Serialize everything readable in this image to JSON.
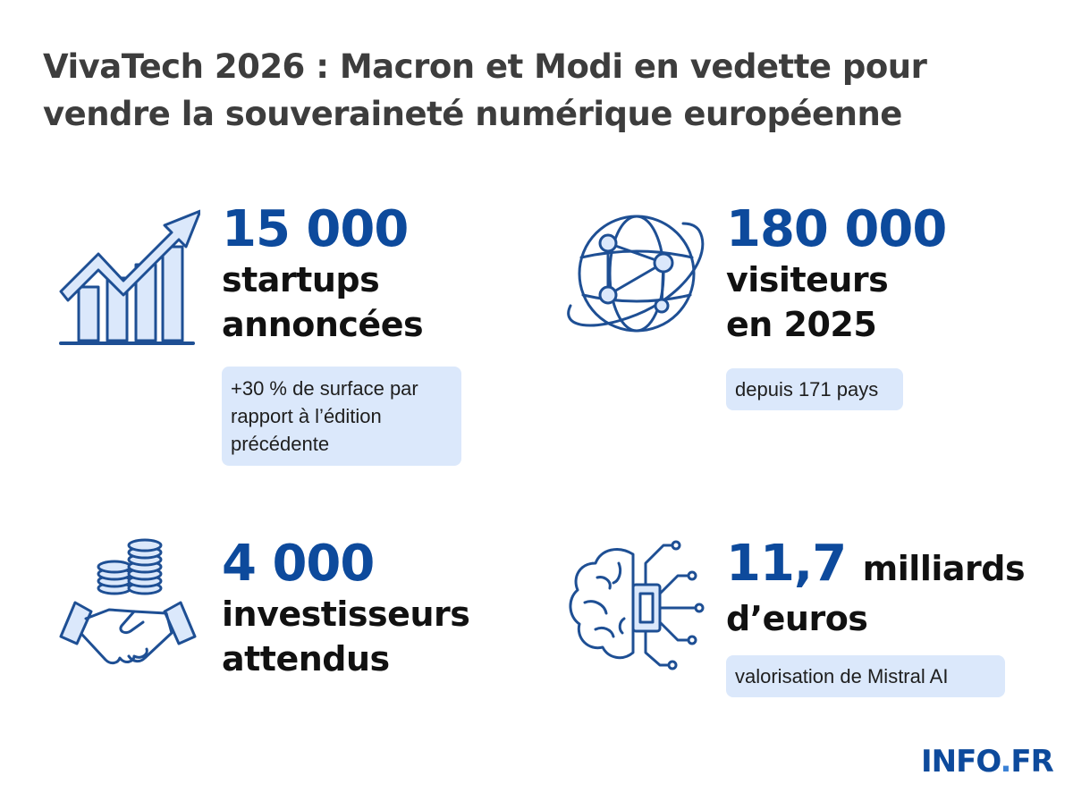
{
  "headline": {
    "line1": "VivaTech 2026 : Macron et Modi en vedette pour",
    "line2": "vendre la souveraineté numérique européenne"
  },
  "stats": {
    "startups": {
      "number": "15 000",
      "label_line1": "startups",
      "label_line2": "annoncées",
      "note_line1": "+30 % de surface par",
      "note_line2": "rapport à l’édition",
      "note_line3": "précédente",
      "icon": "growth-chart-icon"
    },
    "visitors": {
      "number": "180 000",
      "label_line1": "visiteurs",
      "label_line2": "en 2025",
      "note": "depuis 171 pays",
      "icon": "globe-network-icon"
    },
    "investors": {
      "number": "4 000",
      "label_line1": "investisseurs",
      "label_line2": "attendus",
      "icon": "handshake-coins-icon"
    },
    "mistral": {
      "number": "11,7",
      "label_suffix": "milliards",
      "label_line2": "d’euros",
      "note": "valorisation de Mistral AI",
      "icon": "ai-brain-chip-icon"
    }
  },
  "logo": {
    "text_main": "INFO",
    "text_dot": ".",
    "text_tld": "FR"
  },
  "colors": {
    "accent": "#0d4a9c",
    "icon_stroke": "#1e4f94",
    "note_background": "#dbe8fb",
    "headline": "#3d3d3d"
  }
}
